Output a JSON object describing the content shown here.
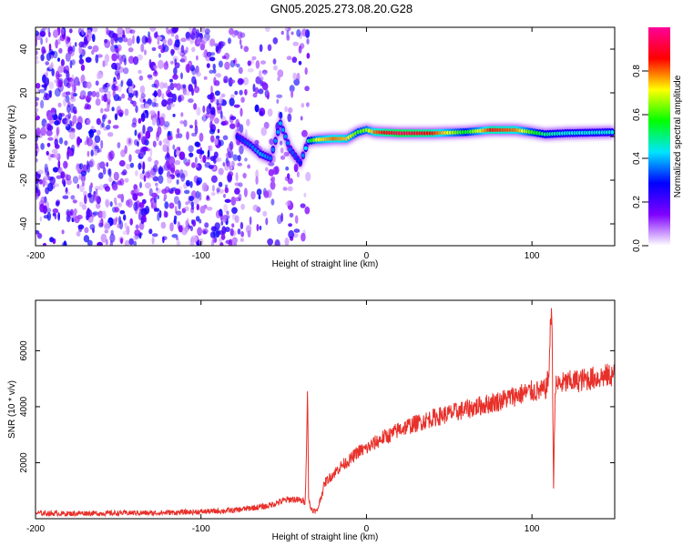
{
  "title": "GN05.2025.273.08.20.G28",
  "chart_data": [
    {
      "type": "heatmap",
      "xlabel": "Height of straight line (km)",
      "ylabel": "Frequency (Hz)",
      "xlim": [
        -200,
        150
      ],
      "ylim": [
        -50,
        50
      ],
      "x_ticks": [
        -200,
        -100,
        0,
        100
      ],
      "x_tick_labels": [
        "-200",
        "-100",
        "0",
        "100"
      ],
      "y_ticks": [
        -40,
        -20,
        0,
        20,
        40
      ],
      "y_tick_labels": [
        "-40",
        "-20",
        "0",
        "20",
        "40"
      ],
      "colorbar": {
        "label": "Normalized spectral amplitude",
        "range": [
          0,
          1
        ],
        "ticks": [
          0.0,
          0.2,
          0.4,
          0.6,
          0.8
        ],
        "tick_labels": [
          "0.0",
          "0.2",
          "0.4",
          "0.6",
          "0.8"
        ],
        "colors": [
          "#ffffff",
          "#7f00ff",
          "#0000ff",
          "#00e5ff",
          "#00ff00",
          "#ffff00",
          "#ff0000",
          "#ff0099"
        ]
      },
      "noise_region": {
        "x_range": [
          -200,
          -35
        ],
        "amplitude": 0.25
      },
      "ridge": [
        [
          -78,
          0,
          0.3
        ],
        [
          -70,
          -4,
          0.35
        ],
        [
          -64,
          -8,
          0.4
        ],
        [
          -58,
          -10,
          0.35
        ],
        [
          -52,
          6,
          0.4
        ],
        [
          -46,
          -6,
          0.35
        ],
        [
          -40,
          -12,
          0.3
        ],
        [
          -35,
          -2,
          0.5
        ],
        [
          -30,
          -1.5,
          0.7
        ],
        [
          -20,
          -1,
          0.8
        ],
        [
          -12,
          -1,
          0.75
        ],
        [
          -5,
          2,
          0.6
        ],
        [
          0,
          3,
          0.65
        ],
        [
          5,
          2,
          0.8
        ],
        [
          20,
          1.5,
          0.95
        ],
        [
          40,
          1.5,
          0.85
        ],
        [
          60,
          2,
          0.55
        ],
        [
          75,
          3,
          0.85
        ],
        [
          90,
          3,
          0.8
        ],
        [
          100,
          2,
          0.6
        ],
        [
          108,
          1,
          0.5
        ],
        [
          120,
          1.5,
          0.45
        ],
        [
          150,
          2,
          0.45
        ]
      ],
      "grid": false
    },
    {
      "type": "line",
      "xlabel": "Height of straight line (km)",
      "ylabel": "SNR (10 * v/v)",
      "xlim": [
        -200,
        150
      ],
      "ylim": [
        0,
        7800
      ],
      "x_ticks": [
        -200,
        -100,
        0,
        100
      ],
      "x_tick_labels": [
        "-200",
        "-100",
        "0",
        "100"
      ],
      "y_ticks": [
        2000,
        4000,
        6000
      ],
      "y_tick_labels": [
        "2000",
        "4000",
        "6000"
      ],
      "series": [
        {
          "color": "#e8302a",
          "x": [
            -200,
            -190,
            -180,
            -170,
            -160,
            -150,
            -140,
            -130,
            -120,
            -110,
            -100,
            -90,
            -80,
            -70,
            -60,
            -55,
            -50,
            -45,
            -40,
            -37,
            -35.5,
            -35,
            -34,
            -32,
            -30,
            -25,
            -20,
            -15,
            -10,
            -5,
            0,
            5,
            10,
            15,
            20,
            25,
            30,
            40,
            50,
            60,
            70,
            80,
            90,
            100,
            105,
            108,
            110,
            111,
            112,
            113,
            114,
            116,
            120,
            130,
            140,
            150
          ],
          "y": [
            200,
            190,
            180,
            200,
            190,
            200,
            210,
            200,
            220,
            230,
            250,
            270,
            300,
            380,
            450,
            550,
            650,
            700,
            650,
            600,
            4700,
            800,
            400,
            300,
            250,
            1300,
            1600,
            1900,
            2100,
            2400,
            2500,
            2700,
            2900,
            3000,
            3200,
            3300,
            3400,
            3600,
            3750,
            3900,
            4050,
            4200,
            4400,
            4550,
            4550,
            4600,
            5000,
            6500,
            7800,
            1000,
            4700,
            4800,
            4850,
            4950,
            5050,
            5150
          ]
        }
      ],
      "grid": false
    }
  ]
}
